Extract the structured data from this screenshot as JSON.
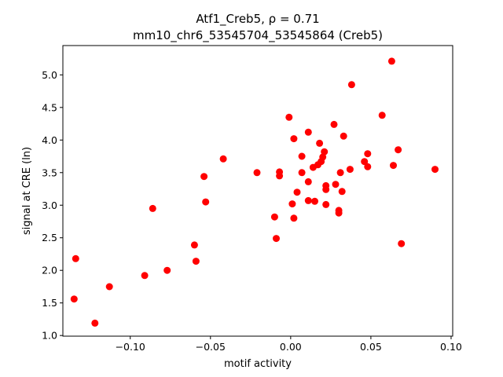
{
  "chart_data": {
    "type": "scatter",
    "title_line1": "Atf1_Creb5, ρ = 0.71",
    "title_line2": "mm10_chr6_53545704_53545864 (Creb5)",
    "xlabel": "motif activity",
    "ylabel": "signal at CRE (ln)",
    "xlim": [
      -0.142,
      0.101
    ],
    "ylim": [
      0.99,
      5.45
    ],
    "x_ticks": [
      -0.1,
      -0.05,
      0.0,
      0.05,
      0.1
    ],
    "x_tick_labels": [
      "−0.10",
      "−0.05",
      "0.00",
      "0.05",
      "0.10"
    ],
    "y_ticks": [
      1.0,
      1.5,
      2.0,
      2.5,
      3.0,
      3.5,
      4.0,
      4.5,
      5.0
    ],
    "y_tick_labels": [
      "1.0",
      "1.5",
      "2.0",
      "2.5",
      "3.0",
      "3.5",
      "4.0",
      "4.5",
      "5.0"
    ],
    "grid": false,
    "marker_color": "#ff0000",
    "points": [
      {
        "x": -0.134,
        "y": 2.18
      },
      {
        "x": -0.135,
        "y": 1.56
      },
      {
        "x": -0.122,
        "y": 1.19
      },
      {
        "x": -0.113,
        "y": 1.75
      },
      {
        "x": -0.091,
        "y": 1.92
      },
      {
        "x": -0.086,
        "y": 2.95
      },
      {
        "x": -0.077,
        "y": 2.0
      },
      {
        "x": -0.06,
        "y": 2.39
      },
      {
        "x": -0.059,
        "y": 2.14
      },
      {
        "x": -0.054,
        "y": 3.44
      },
      {
        "x": -0.053,
        "y": 3.05
      },
      {
        "x": -0.042,
        "y": 3.71
      },
      {
        "x": -0.021,
        "y": 3.5
      },
      {
        "x": -0.01,
        "y": 2.82
      },
      {
        "x": -0.009,
        "y": 2.49
      },
      {
        "x": -0.007,
        "y": 3.51
      },
      {
        "x": -0.007,
        "y": 3.45
      },
      {
        "x": -0.001,
        "y": 4.35
      },
      {
        "x": 0.001,
        "y": 3.02
      },
      {
        "x": 0.002,
        "y": 4.02
      },
      {
        "x": 0.002,
        "y": 2.8
      },
      {
        "x": 0.004,
        "y": 3.2
      },
      {
        "x": 0.007,
        "y": 3.75
      },
      {
        "x": 0.007,
        "y": 3.5
      },
      {
        "x": 0.011,
        "y": 4.12
      },
      {
        "x": 0.011,
        "y": 3.36
      },
      {
        "x": 0.011,
        "y": 3.07
      },
      {
        "x": 0.014,
        "y": 3.58
      },
      {
        "x": 0.015,
        "y": 3.06
      },
      {
        "x": 0.017,
        "y": 3.62
      },
      {
        "x": 0.018,
        "y": 3.95
      },
      {
        "x": 0.019,
        "y": 3.67
      },
      {
        "x": 0.02,
        "y": 3.74
      },
      {
        "x": 0.021,
        "y": 3.82
      },
      {
        "x": 0.022,
        "y": 3.3
      },
      {
        "x": 0.022,
        "y": 3.24
      },
      {
        "x": 0.022,
        "y": 3.01
      },
      {
        "x": 0.027,
        "y": 4.24
      },
      {
        "x": 0.028,
        "y": 3.32
      },
      {
        "x": 0.03,
        "y": 2.92
      },
      {
        "x": 0.03,
        "y": 2.88
      },
      {
        "x": 0.031,
        "y": 3.5
      },
      {
        "x": 0.032,
        "y": 3.21
      },
      {
        "x": 0.033,
        "y": 4.06
      },
      {
        "x": 0.037,
        "y": 3.55
      },
      {
        "x": 0.038,
        "y": 4.85
      },
      {
        "x": 0.046,
        "y": 3.67
      },
      {
        "x": 0.048,
        "y": 3.59
      },
      {
        "x": 0.048,
        "y": 3.79
      },
      {
        "x": 0.057,
        "y": 4.38
      },
      {
        "x": 0.063,
        "y": 5.21
      },
      {
        "x": 0.064,
        "y": 3.61
      },
      {
        "x": 0.067,
        "y": 3.85
      },
      {
        "x": 0.069,
        "y": 2.41
      },
      {
        "x": 0.09,
        "y": 3.55
      }
    ]
  }
}
